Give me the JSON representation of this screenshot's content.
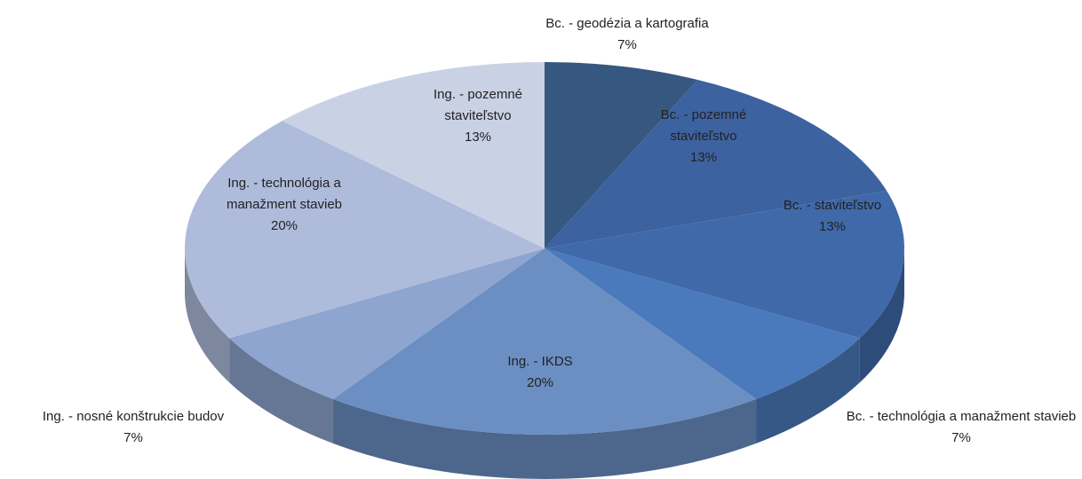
{
  "chart_data": {
    "type": "pie",
    "categories": [
      "Bc. - geodézia a kartografia",
      "Bc. - pozemné staviteľstvo",
      "Bc. - staviteľstvo",
      "Bc. - technológia a manažment stavieb",
      "Ing. - IKDS",
      "Ing. - nosné konštrukcie budov",
      "Ing. - technológia a manažment stavieb",
      "Ing. - pozemné staviteľstvo"
    ],
    "values": [
      7,
      13,
      13,
      7,
      20,
      7,
      20,
      13
    ],
    "value_labels": [
      "7%",
      "13%",
      "13%",
      "7%",
      "20%",
      "7%",
      "20%",
      "13%"
    ],
    "colors": [
      "#36577f",
      "#3d62a0",
      "#4069a9",
      "#4a7abc",
      "#6b8fc2",
      "#8da5cf",
      "#aebbdb",
      "#c9d1e5"
    ]
  }
}
